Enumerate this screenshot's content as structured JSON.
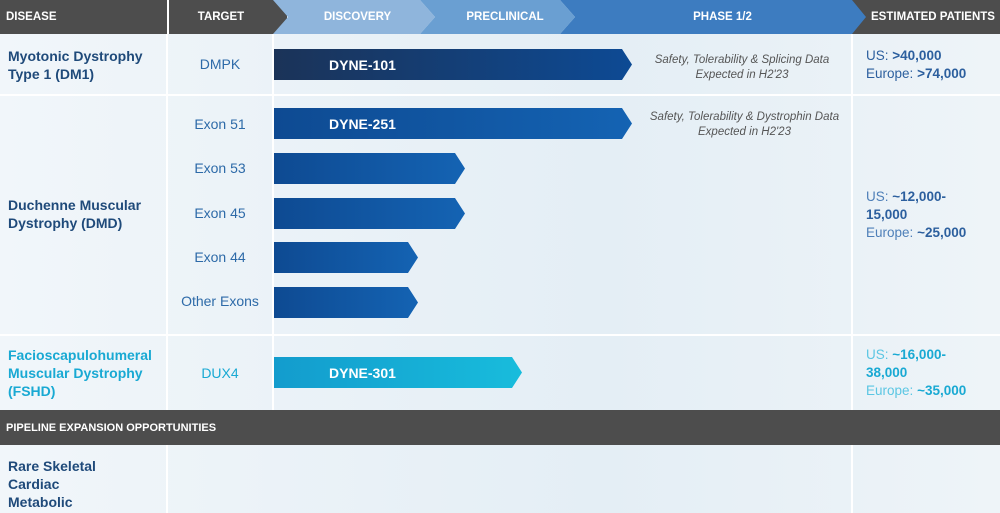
{
  "header": {
    "disease": "DISEASE",
    "target": "TARGET",
    "discovery": "DISCOVERY",
    "preclinical": "PRECLINICAL",
    "phase": "PHASE 1/2",
    "patients": "ESTIMATED PATIENTS"
  },
  "colors": {
    "header_bg": "#4d4d4d",
    "discovery": "#8fb5dc",
    "preclinical": "#6a9fd2",
    "phase": "#3d7cc0",
    "dm1": "#16386a",
    "dmd": "#0e4f9c",
    "fshd": "#16b1d6"
  },
  "dm1": {
    "disease": "Myotonic Dystrophy Type 1 (DM1)",
    "target": "DMPK",
    "program": "DYNE-101",
    "stage": "Phase 1/2",
    "note": "Safety, Tolerability & Splicing Data Expected in H2'23",
    "us_label": "US:",
    "us": ">40,000",
    "eu_label": "Europe:",
    "eu": ">74,000"
  },
  "dmd": {
    "disease": "Duchenne Muscular Dystrophy (DMD)",
    "us_label": "US:",
    "us": "~12,000-15,000",
    "eu_label": "Europe:",
    "eu": "~25,000",
    "rows": [
      {
        "target": "Exon 51",
        "program": "DYNE-251",
        "stage": "Phase 1/2",
        "note": "Safety, Tolerability & Dystrophin Data Expected in H2'23"
      },
      {
        "target": "Exon 53",
        "program": "",
        "stage": "Preclinical"
      },
      {
        "target": "Exon 45",
        "program": "",
        "stage": "Preclinical"
      },
      {
        "target": "Exon 44",
        "program": "",
        "stage": "Discovery"
      },
      {
        "target": "Other Exons",
        "program": "",
        "stage": "Discovery"
      }
    ]
  },
  "fshd": {
    "disease": "Facioscapulohumeral Muscular Dystrophy (FSHD)",
    "target": "DUX4",
    "program": "DYNE-301",
    "stage": "Preclinical",
    "us_label": "US:",
    "us": "~16,000-38,000",
    "eu_label": "Europe:",
    "eu": "~35,000"
  },
  "expansion": {
    "title": "PIPELINE EXPANSION OPPORTUNITIES",
    "items": [
      "Rare Skeletal",
      "Cardiac",
      "Metabolic"
    ]
  }
}
